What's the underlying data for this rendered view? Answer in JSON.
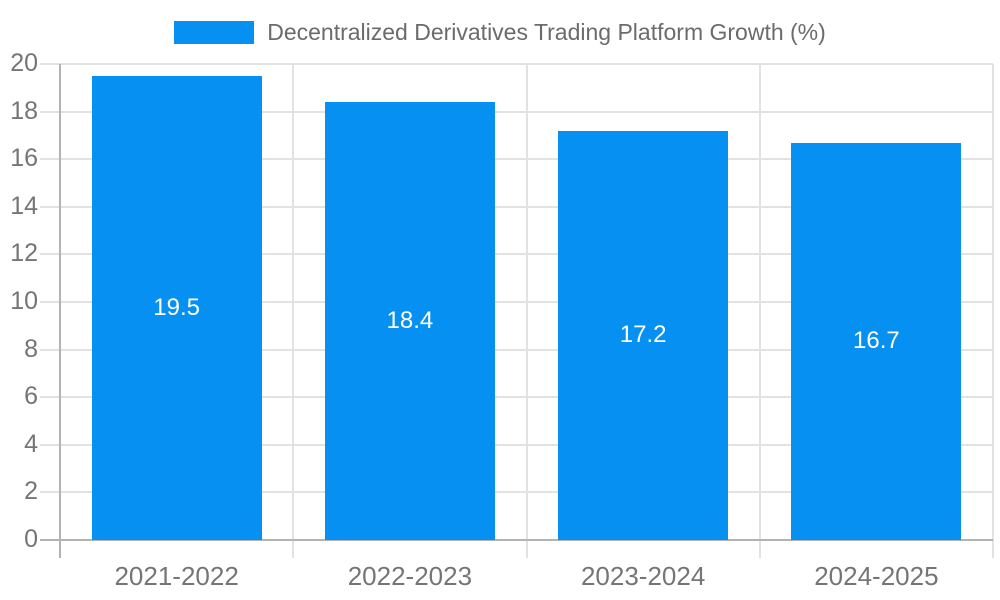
{
  "page": {
    "background_color": "#ffffff"
  },
  "legend": {
    "label": "Decentralized Derivatives Trading Platform Growth (%)",
    "swatch_color": "#0590f2",
    "text_color": "#6b6b6b",
    "position": "top-center"
  },
  "chart_data": {
    "type": "bar",
    "title": "Decentralized Derivatives Trading Platform Growth (%)",
    "categories": [
      "2021-2022",
      "2022-2023",
      "2023-2024",
      "2024-2025"
    ],
    "values": [
      19.5,
      18.4,
      17.2,
      16.7
    ],
    "data_labels": [
      "19.5",
      "18.4",
      "17.2",
      "16.7"
    ],
    "xlabel": "",
    "ylabel": "",
    "ylim": [
      0,
      20
    ],
    "yticks": [
      "0",
      "2",
      "4",
      "6",
      "8",
      "10",
      "12",
      "14",
      "16",
      "18",
      "20"
    ],
    "grid": true,
    "legend_position": "top-center",
    "colors": {
      "bar": "#0590f2",
      "bar_value_label": "#ffffff",
      "gridline": "#e2e2e2",
      "axis_line": "#b3b3b3",
      "tick_label": "#757575"
    }
  }
}
